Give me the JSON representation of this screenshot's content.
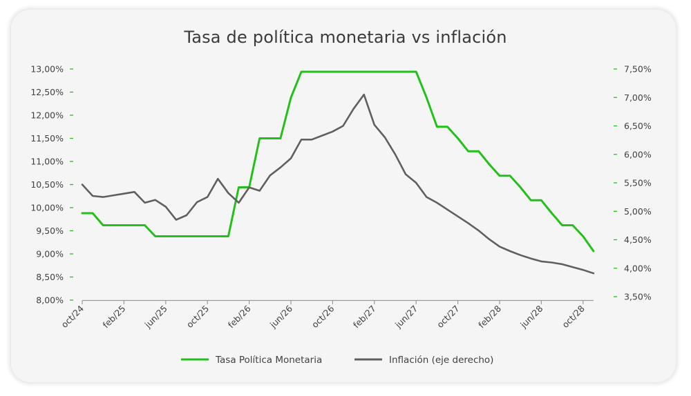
{
  "chart_data": {
    "type": "line",
    "title": "Tasa de política monetaria vs inflación",
    "x_tick_labels": [
      "oct/24",
      "feb/25",
      "jun/25",
      "oct/25",
      "feb/26",
      "jun/26",
      "oct/26",
      "feb/27",
      "jun/27",
      "oct/27",
      "feb/28",
      "jun/28",
      "oct/28"
    ],
    "x_tick_index": [
      0,
      4,
      8,
      12,
      16,
      20,
      24,
      28,
      32,
      36,
      40,
      44,
      48
    ],
    "left_axis": {
      "min": 8.0,
      "max": 13.0,
      "ticks": [
        "13,00%",
        "12,50%",
        "12,00%",
        "11,50%",
        "11,00%",
        "10,50%",
        "10,00%",
        "9,50%",
        "9,00%",
        "8,50%",
        "8,00%"
      ],
      "values": [
        13.0,
        12.5,
        12.0,
        11.5,
        11.0,
        10.5,
        10.0,
        9.5,
        9.0,
        8.5,
        8.0
      ]
    },
    "right_axis": {
      "min": 3.5,
      "max": 7.5,
      "ticks": [
        "7,50%",
        "7,00%",
        "6,50%",
        "6,00%",
        "5,50%",
        "5,00%",
        "4,50%",
        "4,00%",
        "3,50%"
      ],
      "values": [
        7.5,
        7.0,
        6.5,
        6.0,
        5.5,
        5.0,
        4.5,
        4.0,
        3.5
      ]
    },
    "series": [
      {
        "name": "Tasa Política Monetaria",
        "axis": "left",
        "color": "#22c11a",
        "x": [
          0,
          1,
          2,
          3,
          4,
          5,
          6,
          7,
          8,
          9,
          10,
          11,
          12,
          13,
          14,
          15,
          16,
          17,
          18,
          19,
          20,
          21,
          22,
          23,
          24,
          25,
          26,
          27,
          28,
          29,
          30,
          31,
          32,
          33,
          34,
          35,
          36,
          37,
          38,
          39,
          40,
          41,
          42,
          43,
          44,
          45,
          46,
          47,
          48,
          49
        ],
        "values": [
          9.88,
          9.88,
          9.62,
          9.62,
          9.62,
          9.62,
          9.62,
          9.38,
          9.38,
          9.38,
          9.38,
          9.38,
          9.38,
          9.38,
          9.38,
          10.44,
          10.44,
          11.5,
          11.5,
          11.5,
          12.38,
          12.94,
          12.94,
          12.94,
          12.94,
          12.94,
          12.94,
          12.94,
          12.94,
          12.94,
          12.94,
          12.94,
          12.94,
          12.38,
          11.75,
          11.75,
          11.5,
          11.22,
          11.22,
          10.94,
          10.69,
          10.69,
          10.44,
          10.16,
          10.16,
          9.88,
          9.62,
          9.62,
          9.38,
          9.06
        ]
      },
      {
        "name": "Inflación (eje derecho)",
        "axis": "right",
        "color": "#5f5f5f",
        "x": [
          0,
          1,
          2,
          3,
          4,
          5,
          6,
          7,
          8,
          9,
          10,
          11,
          12,
          13,
          14,
          15,
          16,
          17,
          18,
          19,
          20,
          21,
          22,
          23,
          24,
          25,
          26,
          27,
          28,
          29,
          30,
          31,
          32,
          33,
          34,
          35,
          36,
          37,
          38,
          39,
          40,
          41,
          42,
          43,
          44,
          45,
          46,
          47,
          48,
          49
        ],
        "values": [
          5.47,
          5.27,
          5.25,
          5.28,
          5.31,
          5.34,
          5.15,
          5.2,
          5.08,
          4.85,
          4.93,
          5.16,
          5.25,
          5.57,
          5.32,
          5.15,
          5.42,
          5.36,
          5.63,
          5.77,
          5.93,
          6.26,
          6.26,
          6.33,
          6.4,
          6.5,
          6.8,
          7.05,
          6.52,
          6.3,
          6.0,
          5.65,
          5.5,
          5.25,
          5.15,
          5.03,
          4.91,
          4.79,
          4.66,
          4.51,
          4.38,
          4.3,
          4.23,
          4.17,
          4.12,
          4.1,
          4.07,
          4.02,
          3.97,
          3.91
        ]
      }
    ],
    "legend_position": "bottom-center",
    "grid": false
  }
}
